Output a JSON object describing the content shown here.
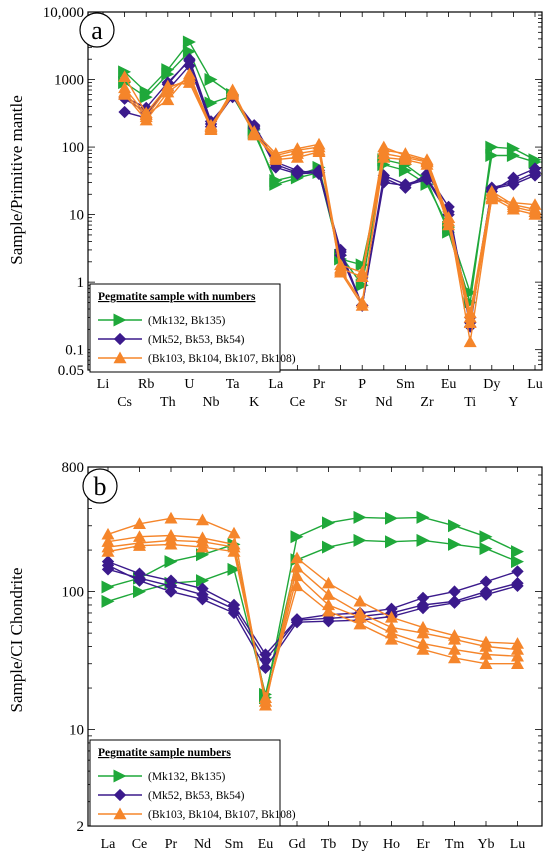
{
  "colors": {
    "green": "#1fa83a",
    "purple": "#3b1a8c",
    "orange": "#f5852a",
    "frame": "#000000"
  },
  "chart_data": [
    {
      "type": "line",
      "panel_label": "a",
      "ylabel": "Sample/Primitive mantle",
      "yscale": "log",
      "ylim": [
        0.05,
        10000
      ],
      "yticks": [
        {
          "value": 10000,
          "label": "10,000"
        },
        {
          "value": 1000,
          "label": "1000"
        },
        {
          "value": 100,
          "label": "100"
        },
        {
          "value": 10,
          "label": "10"
        },
        {
          "value": 1,
          "label": "1"
        },
        {
          "value": 0.1,
          "label": "0.1"
        },
        {
          "value": 0.05,
          "label": "0.05"
        }
      ],
      "categories": [
        "Li",
        "Cs",
        "Rb",
        "Th",
        "U",
        "Nb",
        "Ta",
        "K",
        "La",
        "Ce",
        "Pr",
        "Sr",
        "P",
        "Nd",
        "Sm",
        "Zr",
        "Eu",
        "Ti",
        "Dy",
        "Y",
        "Lu"
      ],
      "legend_title": "Pegmatite sample with numbers",
      "legend": [
        {
          "label": "(Mk132, Bk135)",
          "group": "green"
        },
        {
          "label": "(Mk52, Bk53, Bk54)",
          "group": "purple"
        },
        {
          "label": "(Bk103, Bk104, Bk107, Bk108)",
          "group": "orange"
        }
      ],
      "series": [
        {
          "group": "green",
          "values": [
            null,
            1300,
            650,
            1400,
            3600,
            1000,
            600,
            180,
            28,
            35,
            42,
            2.2,
            1.8,
            55,
            45,
            28,
            6.5,
            0.7,
            75,
            75,
            60
          ]
        },
        {
          "group": "green",
          "values": [
            null,
            900,
            550,
            1200,
            2600,
            450,
            570,
            160,
            32,
            38,
            50,
            2.5,
            0.9,
            65,
            55,
            32,
            5.5,
            0.5,
            100,
            95,
            65
          ]
        },
        {
          "group": "purple",
          "values": [
            null,
            330,
            270,
            850,
            2000,
            240,
            550,
            210,
            60,
            45,
            40,
            3.0,
            0.45,
            35,
            25,
            40,
            13,
            0.25,
            22,
            35,
            48
          ]
        },
        {
          "group": "purple",
          "values": [
            null,
            520,
            330,
            700,
            1600,
            220,
            590,
            190,
            55,
            42,
            45,
            2.8,
            0.45,
            38,
            28,
            35,
            11,
            0.3,
            24,
            28,
            38
          ]
        },
        {
          "group": "purple",
          "values": [
            null,
            550,
            380,
            900,
            1900,
            200,
            560,
            200,
            50,
            40,
            42,
            2.5,
            0.45,
            30,
            27,
            33,
            10,
            0.22,
            25,
            30,
            42
          ]
        },
        {
          "group": "orange",
          "values": [
            null,
            600,
            250,
            650,
            1100,
            180,
            650,
            150,
            75,
            90,
            100,
            1.4,
            0.45,
            90,
            80,
            65,
            9,
            0.13,
            18,
            12,
            10
          ]
        },
        {
          "group": "orange",
          "values": [
            null,
            750,
            300,
            500,
            1200,
            200,
            700,
            160,
            70,
            80,
            90,
            1.6,
            1.2,
            80,
            70,
            60,
            8,
            0.3,
            20,
            13,
            11
          ]
        },
        {
          "group": "orange",
          "values": [
            null,
            1100,
            320,
            800,
            900,
            190,
            600,
            170,
            80,
            95,
            110,
            1.8,
            1.4,
            100,
            75,
            62,
            9,
            0.35,
            22,
            14,
            12
          ]
        },
        {
          "group": "orange",
          "values": [
            null,
            650,
            280,
            750,
            1000,
            210,
            620,
            155,
            65,
            70,
            85,
            1.5,
            0.5,
            70,
            65,
            55,
            7,
            0.25,
            17,
            15,
            14
          ]
        }
      ]
    },
    {
      "type": "line",
      "panel_label": "b",
      "ylabel": "Sample/CI Chondrite",
      "yscale": "log",
      "ylim": [
        2,
        800
      ],
      "yticks": [
        {
          "value": 800,
          "label": "800"
        },
        {
          "value": 100,
          "label": "100"
        },
        {
          "value": 10,
          "label": "10"
        },
        {
          "value": 2,
          "label": "2"
        }
      ],
      "categories": [
        "La",
        "Ce",
        "Pr",
        "Nd",
        "Sm",
        "Eu",
        "Gd",
        "Tb",
        "Dy",
        "Ho",
        "Er",
        "Tm",
        "Yb",
        "Lu"
      ],
      "legend_title": "Pegmatite sample numbers",
      "legend": [
        {
          "label": "(Mk132, Bk135)",
          "group": "green"
        },
        {
          "label": "(Mk52, Bk53, Bk54)",
          "group": "purple"
        },
        {
          "label": "(Bk103, Bk104, Bk107, Bk108)",
          "group": "orange"
        }
      ],
      "series": [
        {
          "group": "green",
          "values": [
            108,
            125,
            165,
            185,
            220,
            17,
            250,
            315,
            345,
            340,
            345,
            300,
            250,
            195
          ]
        },
        {
          "group": "green",
          "values": [
            85,
            100,
            115,
            120,
            145,
            18,
            170,
            210,
            235,
            230,
            235,
            220,
            205,
            165
          ]
        },
        {
          "group": "purple",
          "values": [
            165,
            135,
            120,
            105,
            80,
            35,
            63,
            68,
            70,
            75,
            90,
            100,
            118,
            140
          ]
        },
        {
          "group": "purple",
          "values": [
            155,
            120,
            100,
            88,
            70,
            28,
            60,
            61,
            62,
            66,
            76,
            83,
            95,
            110
          ]
        },
        {
          "group": "purple",
          "values": [
            145,
            125,
            110,
            95,
            75,
            32,
            62,
            64,
            66,
            70,
            80,
            85,
            100,
            115
          ]
        },
        {
          "group": "orange",
          "values": [
            260,
            310,
            340,
            330,
            265,
            15,
            175,
            115,
            85,
            65,
            55,
            48,
            43,
            42
          ]
        },
        {
          "group": "orange",
          "values": [
            230,
            250,
            255,
            245,
            220,
            16,
            150,
            95,
            70,
            55,
            50,
            45,
            40,
            38
          ]
        },
        {
          "group": "orange",
          "values": [
            210,
            225,
            235,
            230,
            210,
            16,
            130,
            80,
            65,
            50,
            42,
            38,
            35,
            34
          ]
        },
        {
          "group": "orange",
          "values": [
            195,
            215,
            220,
            210,
            195,
            17,
            110,
            72,
            58,
            45,
            38,
            33,
            30,
            30
          ]
        }
      ]
    }
  ]
}
